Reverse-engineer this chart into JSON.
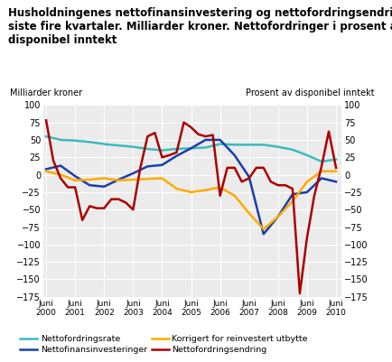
{
  "title_line1": "Husholdningenes nettofinansinvestering og nettofordringsendring",
  "title_line2": "siste fire kvartaler. Milliarder kroner. Nettofordringer i prosent av",
  "title_line3": "disponibel inntekt",
  "ylabel_left": "Milliarder kroner",
  "ylabel_right": "Prosent av disponibel inntekt",
  "ylim": [
    -175,
    100
  ],
  "yticks": [
    -175,
    -150,
    -125,
    -100,
    -75,
    -50,
    -25,
    0,
    25,
    50,
    75,
    100
  ],
  "x_labels": [
    "Juni\n2000",
    "Juni\n2001",
    "Juni\n2002",
    "Juni\n2003",
    "Juni\n2004",
    "Juni\n2005",
    "Juni\n2006",
    "Juni\n2007",
    "Juni\n2008",
    "Juni\n2009",
    "Juni\n2010"
  ],
  "x_positions": [
    0,
    1,
    2,
    3,
    4,
    5,
    6,
    7,
    8,
    9,
    10
  ],
  "nettofordringsrate": {
    "label": "Nettofordringsrate",
    "color": "#3CBBBB",
    "lw": 1.8,
    "x": [
      0,
      0.5,
      1,
      1.5,
      2,
      2.5,
      3,
      3.5,
      4,
      4.5,
      5,
      5.5,
      6,
      6.5,
      7,
      7.5,
      8,
      8.5,
      9,
      9.5,
      10
    ],
    "y": [
      55,
      50,
      49,
      47,
      44,
      42,
      40,
      37,
      35,
      37,
      38,
      39,
      44,
      43,
      43,
      43,
      40,
      36,
      28,
      19,
      22
    ]
  },
  "nettofinansinvesteringer": {
    "label": "Nettofinansinvesteringer",
    "color": "#1A3FAA",
    "lw": 1.8,
    "x": [
      0,
      0.5,
      1,
      1.5,
      2,
      2.5,
      3,
      3.5,
      4,
      4.5,
      5,
      5.5,
      6,
      6.5,
      7,
      7.5,
      8,
      8.5,
      9,
      9.5,
      10
    ],
    "y": [
      8,
      13,
      -2,
      -15,
      -17,
      -7,
      2,
      12,
      14,
      27,
      38,
      50,
      50,
      28,
      -3,
      -85,
      -60,
      -28,
      -25,
      -5,
      -10
    ]
  },
  "korrigert": {
    "label": "Korrigert for reinvestert utbytte",
    "color": "#FFAA00",
    "lw": 1.8,
    "x": [
      0,
      0.5,
      1,
      1.5,
      2,
      2.5,
      3,
      3.5,
      4,
      4.5,
      5,
      5.5,
      6,
      6.5,
      7,
      7.5,
      8,
      8.5,
      9,
      9.5,
      10
    ],
    "y": [
      5,
      0,
      -8,
      -7,
      -5,
      -8,
      -7,
      -6,
      -5,
      -20,
      -25,
      -22,
      -18,
      -30,
      -55,
      -78,
      -60,
      -38,
      -10,
      5,
      5
    ]
  },
  "nettofordringsendring": {
    "label": "Nettofordringsendring",
    "color": "#AA0000",
    "lw": 1.8,
    "x": [
      0,
      0.25,
      0.5,
      0.75,
      1,
      1.25,
      1.5,
      1.75,
      2,
      2.25,
      2.5,
      2.75,
      3,
      3.25,
      3.5,
      3.75,
      4,
      4.25,
      4.5,
      4.75,
      5,
      5.25,
      5.5,
      5.75,
      6,
      6.25,
      6.5,
      6.75,
      7,
      7.25,
      7.5,
      7.75,
      8,
      8.25,
      8.5,
      8.75,
      9,
      9.25,
      9.5,
      9.75,
      10
    ],
    "y": [
      78,
      20,
      -5,
      -18,
      -18,
      -65,
      -45,
      -48,
      -48,
      -35,
      -35,
      -40,
      -50,
      10,
      55,
      60,
      25,
      28,
      32,
      75,
      68,
      58,
      55,
      57,
      -30,
      10,
      10,
      -10,
      -5,
      10,
      10,
      -10,
      -15,
      -15,
      -20,
      -170,
      -90,
      -30,
      12,
      62,
      10
    ]
  },
  "bg_color": "#ebebeb",
  "grid_color": "#ffffff",
  "legend_order": [
    "Nettofordringsrate",
    "Nettofinansinvesteringer",
    "Korrigert for reinvestert utbytte",
    "Nettofordringsendring"
  ]
}
